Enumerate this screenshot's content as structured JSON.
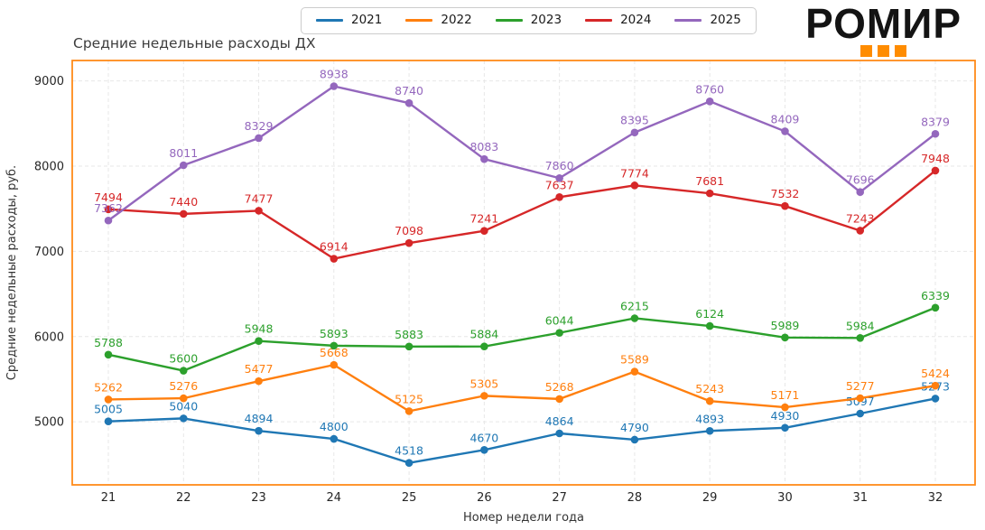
{
  "title": "Средние недельные расходы ДХ",
  "logo": {
    "text": "РОМИР",
    "accent_color": "#ff8c00",
    "squares": 3
  },
  "legend": {
    "position": "top-center"
  },
  "chart_data": {
    "type": "line",
    "title": "Средние недельные расходы ДХ",
    "x": [
      21,
      22,
      23,
      24,
      25,
      26,
      27,
      28,
      29,
      30,
      31,
      32
    ],
    "xlabel": "Номер недели года",
    "ylabel": "Средние недельные расходы, руб.",
    "yticks": [
      5000,
      6000,
      7000,
      8000,
      9000
    ],
    "ylim": [
      4260,
      9240
    ],
    "grid": true,
    "legend_position": "top-center",
    "border_color": "#ff8b1a",
    "marker": "circle",
    "point_labels": true,
    "series": [
      {
        "name": "2021",
        "color": "#1f77b4",
        "values": [
          5005,
          5040,
          4894,
          4800,
          4518,
          4670,
          4864,
          4790,
          4893,
          4930,
          5097,
          5273
        ]
      },
      {
        "name": "2022",
        "color": "#ff7f0e",
        "values": [
          5262,
          5276,
          5477,
          5668,
          5125,
          5305,
          5268,
          5589,
          5243,
          5171,
          5277,
          5424
        ]
      },
      {
        "name": "2023",
        "color": "#2ca02c",
        "values": [
          5788,
          5600,
          5948,
          5893,
          5883,
          5884,
          6044,
          6215,
          6124,
          5989,
          5984,
          6339
        ]
      },
      {
        "name": "2024",
        "color": "#d62728",
        "values": [
          7494,
          7440,
          7477,
          6914,
          7098,
          7241,
          7637,
          7774,
          7681,
          7532,
          7243,
          7948
        ]
      },
      {
        "name": "2025",
        "color": "#9467bd",
        "values": [
          7362,
          8011,
          8329,
          8938,
          8740,
          8083,
          7860,
          8395,
          8760,
          8409,
          7696,
          8379
        ]
      }
    ]
  }
}
